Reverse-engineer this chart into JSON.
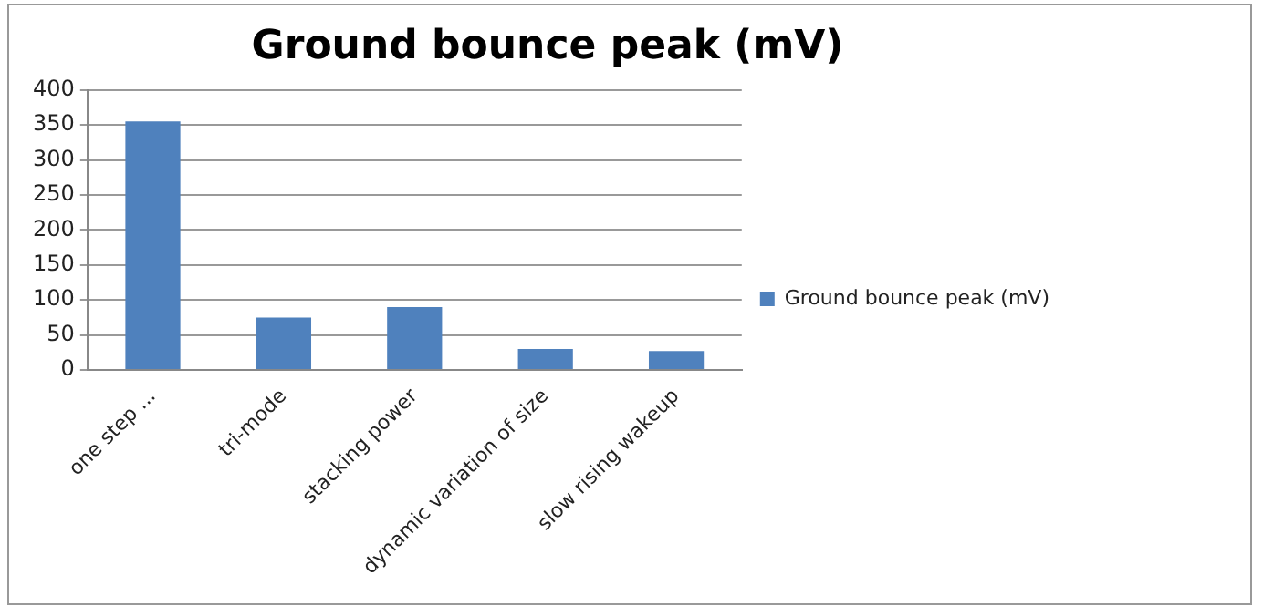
{
  "chart_data": {
    "type": "bar",
    "title": "Ground bounce peak (mV)",
    "categories": [
      "one step ...",
      "tri-mode",
      "stacking power",
      "dynamic variation of size",
      "slow rising wakeup"
    ],
    "series": [
      {
        "name": "Ground bounce peak (mV)",
        "color": "#4f81bd",
        "values": [
          355,
          75,
          90,
          30,
          27
        ]
      }
    ],
    "ylim": [
      0,
      400
    ],
    "yticks": [
      0,
      50,
      100,
      150,
      200,
      250,
      300,
      350,
      400
    ],
    "grid": "y",
    "legend": "right"
  }
}
